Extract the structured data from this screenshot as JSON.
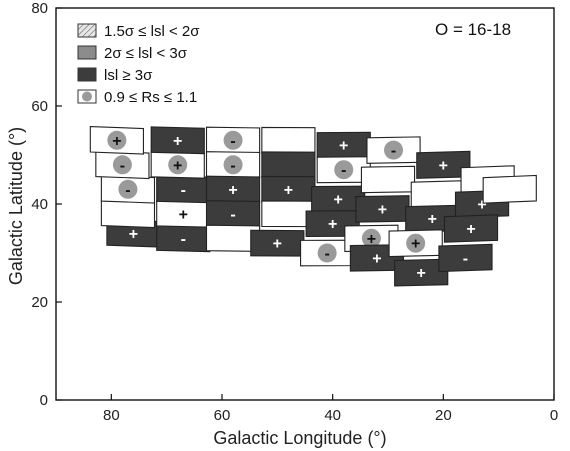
{
  "chart_data": {
    "type": "heatmap",
    "title": "",
    "annotation": "O = 16-18",
    "xlabel": "Galactic Longitude (°)",
    "ylabel": "Galactic Latitude (°)",
    "xlim": [
      90,
      0
    ],
    "ylim": [
      0,
      80
    ],
    "x_ticks": [
      "80",
      "60",
      "40",
      "20",
      "0"
    ],
    "y_ticks": [
      "0",
      "20",
      "40",
      "60",
      "80"
    ],
    "x_tick_values": [
      80,
      60,
      40,
      20,
      0
    ],
    "y_tick_values": [
      0,
      20,
      40,
      60,
      80
    ],
    "grid": false,
    "legend_position": "top-left",
    "legend": [
      {
        "label": "1.5σ  ≤ lsl < 2σ",
        "style": "hatched"
      },
      {
        "label": "2σ ≤ lsl < 3σ",
        "style": "gray"
      },
      {
        "label": "lsl ≥ 3σ",
        "style": "dark"
      },
      {
        "label": "0.9 ≤ Rs ≤ 1.1",
        "style": "circle"
      }
    ],
    "colors": {
      "dark": "#3c3c3c",
      "gray": "#8c8c8c",
      "empty": "#ffffff",
      "circle": "#9a9a9a"
    },
    "cells": [
      {
        "lon": 76,
        "lat": 34,
        "fill": "dark",
        "sign": "+",
        "circle": false
      },
      {
        "lon": 67,
        "lat": 33,
        "fill": "dark",
        "sign": "-",
        "circle": false
      },
      {
        "lon": 77,
        "lat": 38,
        "fill": "empty",
        "sign": "",
        "circle": false
      },
      {
        "lon": 67,
        "lat": 38,
        "fill": "empty",
        "sign": "+",
        "circle": false
      },
      {
        "lon": 77,
        "lat": 43,
        "fill": "empty",
        "sign": "-",
        "circle": true
      },
      {
        "lon": 67,
        "lat": 43,
        "fill": "dark",
        "sign": "-",
        "circle": false
      },
      {
        "lon": 78,
        "lat": 48,
        "fill": "empty",
        "sign": "-",
        "circle": true
      },
      {
        "lon": 68,
        "lat": 48,
        "fill": "empty",
        "sign": "+",
        "circle": true
      },
      {
        "lon": 79,
        "lat": 53,
        "fill": "empty",
        "sign": "+",
        "circle": true
      },
      {
        "lon": 68,
        "lat": 53,
        "fill": "dark",
        "sign": "+",
        "circle": false
      },
      {
        "lon": 58,
        "lat": 53,
        "fill": "empty",
        "sign": "-",
        "circle": true
      },
      {
        "lon": 58,
        "lat": 48,
        "fill": "empty",
        "sign": "-",
        "circle": true
      },
      {
        "lon": 58,
        "lat": 43,
        "fill": "dark",
        "sign": "+",
        "circle": false
      },
      {
        "lon": 58,
        "lat": 38,
        "fill": "dark",
        "sign": "-",
        "circle": false
      },
      {
        "lon": 58,
        "lat": 33,
        "fill": "empty",
        "sign": "",
        "circle": false
      },
      {
        "lon": 48,
        "lat": 53,
        "fill": "empty",
        "sign": "",
        "circle": false
      },
      {
        "lon": 48,
        "lat": 48,
        "fill": "dark",
        "sign": "",
        "circle": false
      },
      {
        "lon": 48,
        "lat": 43,
        "fill": "dark",
        "sign": "+",
        "circle": false
      },
      {
        "lon": 48,
        "lat": 38,
        "fill": "empty",
        "sign": "",
        "circle": false
      },
      {
        "lon": 50,
        "lat": 32,
        "fill": "dark",
        "sign": "+",
        "circle": false
      },
      {
        "lon": 38,
        "lat": 52,
        "fill": "dark",
        "sign": "+",
        "circle": false
      },
      {
        "lon": 38,
        "lat": 47,
        "fill": "empty",
        "sign": "-",
        "circle": true
      },
      {
        "lon": 39,
        "lat": 41,
        "fill": "dark",
        "sign": "+",
        "circle": false
      },
      {
        "lon": 40,
        "lat": 36,
        "fill": "dark",
        "sign": "+",
        "circle": false
      },
      {
        "lon": 41,
        "lat": 30,
        "fill": "empty",
        "sign": "-",
        "circle": true
      },
      {
        "lon": 29,
        "lat": 51,
        "fill": "empty",
        "sign": "-",
        "circle": true
      },
      {
        "lon": 30,
        "lat": 45,
        "fill": "empty",
        "sign": "",
        "circle": false
      },
      {
        "lon": 31,
        "lat": 39,
        "fill": "dark",
        "sign": "+",
        "circle": false
      },
      {
        "lon": 33,
        "lat": 33,
        "fill": "empty",
        "sign": "+",
        "circle": true
      },
      {
        "lon": 32,
        "lat": 29,
        "fill": "dark",
        "sign": "+",
        "circle": false
      },
      {
        "lon": 20,
        "lat": 48,
        "fill": "dark",
        "sign": "+",
        "circle": false
      },
      {
        "lon": 21,
        "lat": 42,
        "fill": "empty",
        "sign": "",
        "circle": false
      },
      {
        "lon": 22,
        "lat": 37,
        "fill": "dark",
        "sign": "+",
        "circle": false
      },
      {
        "lon": 25,
        "lat": 32,
        "fill": "empty",
        "sign": "+",
        "circle": true
      },
      {
        "lon": 24,
        "lat": 26,
        "fill": "dark",
        "sign": "+",
        "circle": false
      },
      {
        "lon": 12,
        "lat": 45,
        "fill": "empty",
        "sign": "",
        "circle": false
      },
      {
        "lon": 13,
        "lat": 40,
        "fill": "dark",
        "sign": "+",
        "circle": false
      },
      {
        "lon": 15,
        "lat": 35,
        "fill": "dark",
        "sign": "+",
        "circle": false
      },
      {
        "lon": 16,
        "lat": 29,
        "fill": "dark",
        "sign": "-",
        "circle": false
      },
      {
        "lon": 8,
        "lat": 43,
        "fill": "empty",
        "sign": "",
        "circle": false
      }
    ]
  }
}
